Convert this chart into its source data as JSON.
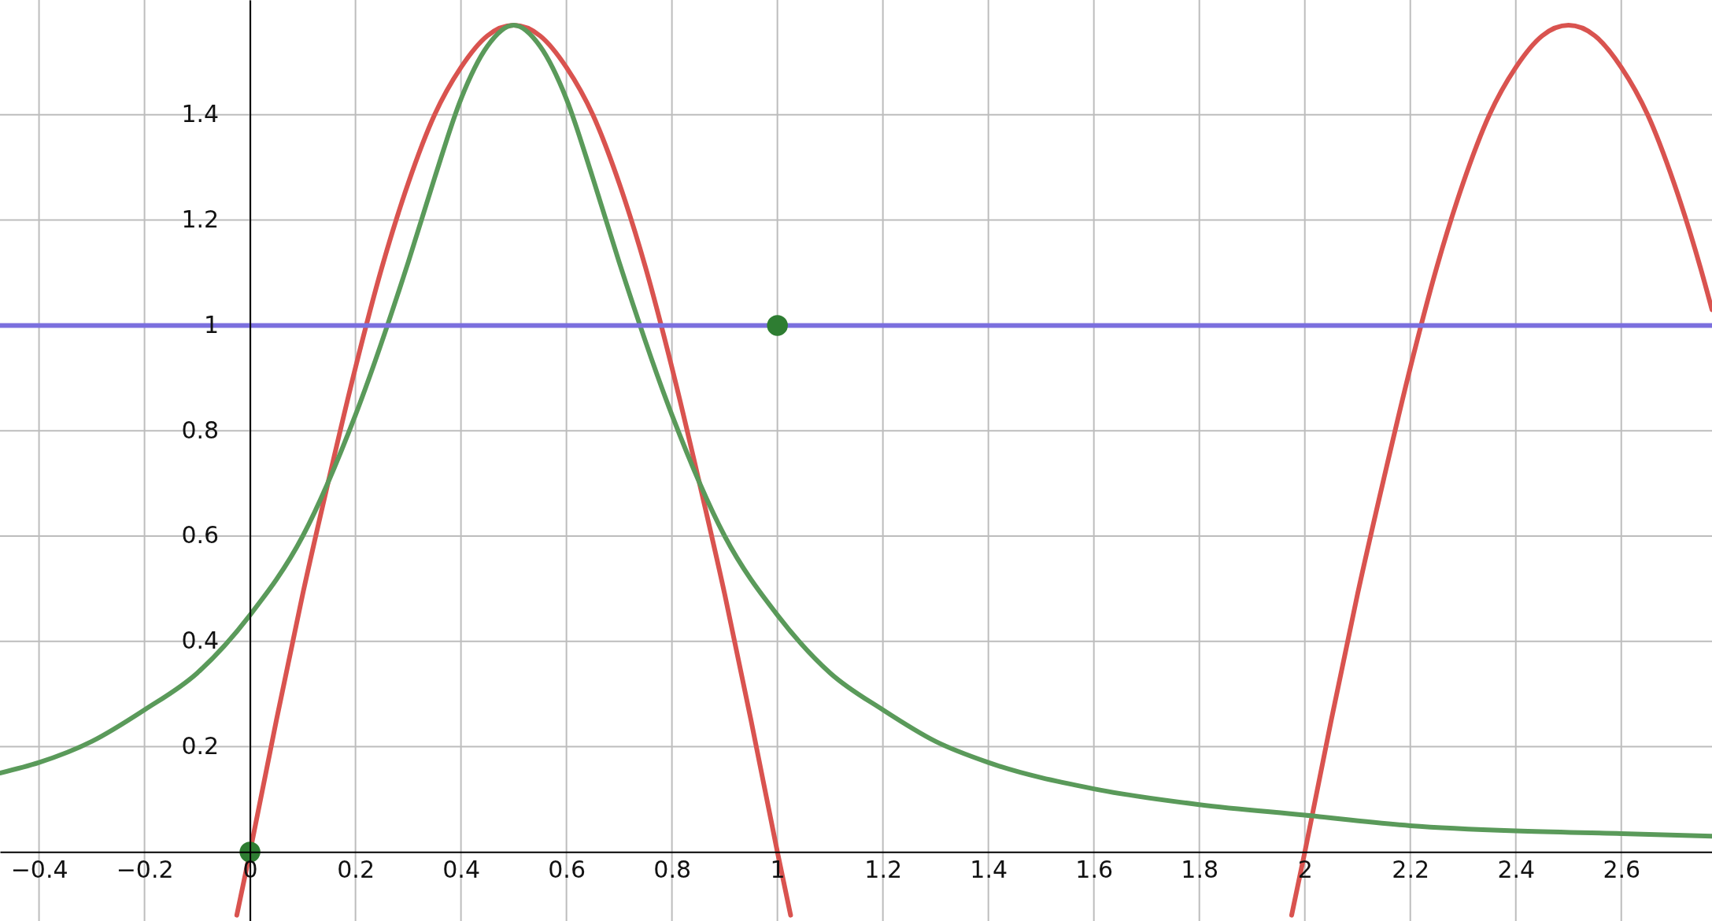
{
  "chart_data": {
    "type": "line",
    "xlim": [
      -0.474,
      2.772
    ],
    "ylim": [
      -0.131,
      1.618
    ],
    "xticks": [
      {
        "value": -0.4,
        "label": "−0.4"
      },
      {
        "value": -0.2,
        "label": "−0.2"
      },
      0,
      0.2,
      0.4,
      0.6,
      0.8,
      1,
      1.2,
      1.4,
      1.6,
      1.8,
      2,
      2.2,
      2.4,
      2.6
    ],
    "yticks": [
      0.2,
      0.4,
      0.6,
      0.8,
      1,
      1.2,
      1.4
    ],
    "grid": true,
    "marker": "none",
    "line_style": "solid",
    "series": [
      {
        "color": "#d9534f",
        "x": [
          -0.025,
          0,
          0.05,
          0.1,
          0.15,
          0.2,
          0.25,
          0.3,
          0.35,
          0.4,
          0.45,
          0.5,
          0.55,
          0.6,
          0.65,
          0.7,
          0.75,
          0.8,
          0.85,
          0.9,
          0.95,
          1,
          1.025
        ],
        "values": [
          -0.12,
          0,
          0.25,
          0.49,
          0.71,
          0.92,
          1.11,
          1.27,
          1.4,
          1.49,
          1.55,
          1.57,
          1.55,
          1.49,
          1.4,
          1.27,
          1.11,
          0.92,
          0.71,
          0.49,
          0.25,
          0,
          -0.12
        ]
      },
      {
        "color": "#d9534f",
        "x": [
          1.975,
          2,
          2.05,
          2.1,
          2.15,
          2.2,
          2.25,
          2.3,
          2.35,
          2.4,
          2.45,
          2.5,
          2.55,
          2.6,
          2.65,
          2.7,
          2.75,
          2.772
        ],
        "values": [
          -0.12,
          0,
          0.25,
          0.49,
          0.71,
          0.92,
          1.11,
          1.27,
          1.4,
          1.49,
          1.55,
          1.57,
          1.55,
          1.49,
          1.4,
          1.27,
          1.11,
          1.03
        ]
      },
      {
        "color": "#5a9a5a",
        "x": [
          -0.474,
          -0.4,
          -0.3,
          -0.2,
          -0.1,
          0,
          0.1,
          0.2,
          0.3,
          0.35,
          0.4,
          0.45,
          0.5,
          0.55,
          0.6,
          0.65,
          0.7,
          0.8,
          0.9,
          1,
          1.1,
          1.2,
          1.3,
          1.4,
          1.6,
          1.8,
          2,
          2.2,
          2.4,
          2.6,
          2.772
        ],
        "values": [
          0.15,
          0.17,
          0.21,
          0.27,
          0.34,
          0.45,
          0.6,
          0.83,
          1.12,
          1.28,
          1.43,
          1.53,
          1.57,
          1.53,
          1.43,
          1.28,
          1.12,
          0.83,
          0.6,
          0.45,
          0.34,
          0.27,
          0.21,
          0.17,
          0.12,
          0.09,
          0.07,
          0.05,
          0.04,
          0.035,
          0.03
        ]
      },
      {
        "color": "#7b6fde",
        "x": [
          -0.474,
          2.772
        ],
        "values": [
          1,
          1
        ]
      },
      {
        "type": "scatter",
        "marker": "circle",
        "color": "#2e7d32",
        "x": [
          0,
          1
        ],
        "values": [
          0,
          1
        ]
      }
    ]
  }
}
